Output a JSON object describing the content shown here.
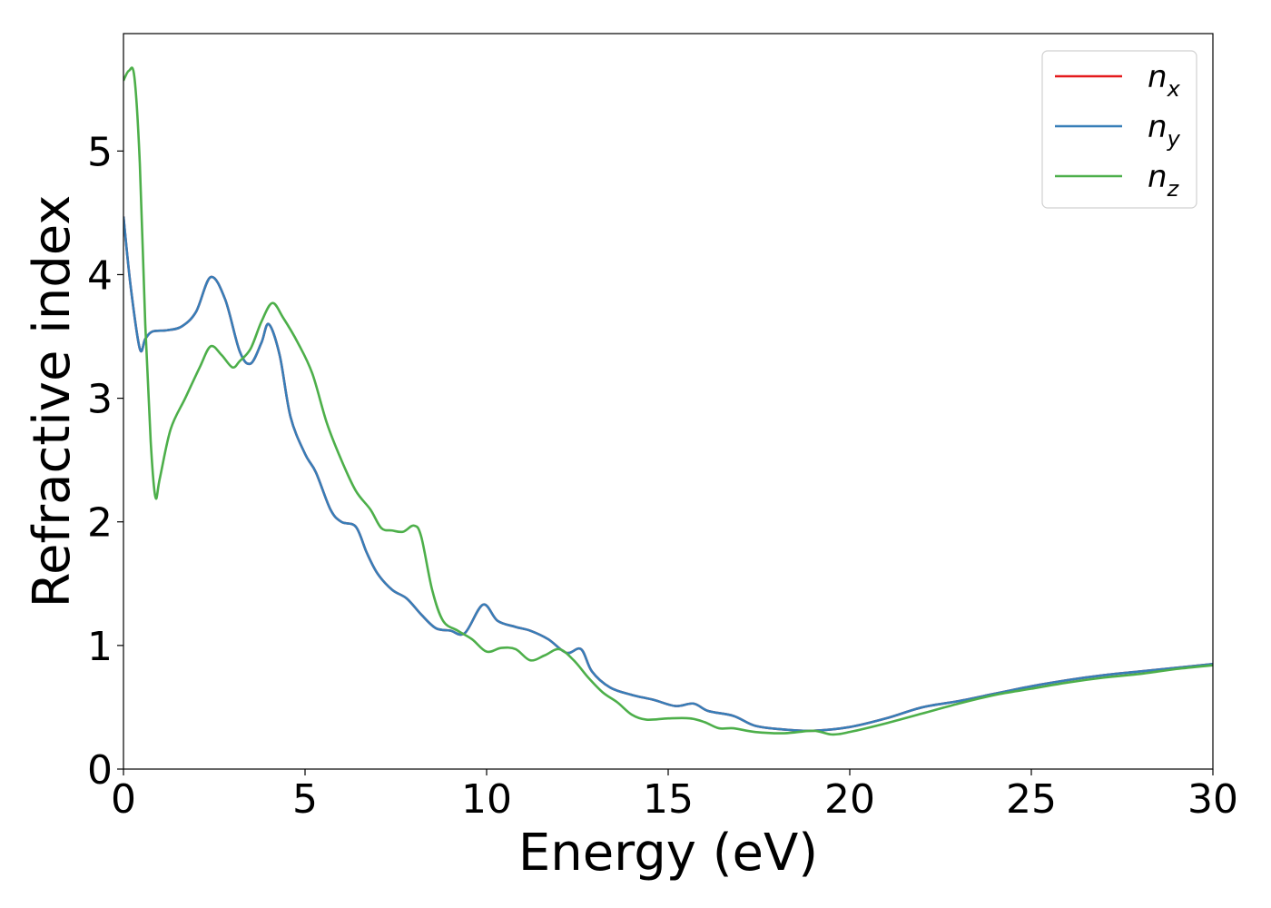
{
  "chart_data": {
    "type": "line",
    "title": "",
    "xlabel": "Energy (eV)",
    "ylabel": "Refractive index",
    "xlim": [
      0,
      30
    ],
    "ylim": [
      0,
      5.95
    ],
    "xticks": [
      "0",
      "5",
      "10",
      "15",
      "20",
      "25",
      "30"
    ],
    "yticks": [
      "0",
      "1",
      "2",
      "3",
      "4",
      "5"
    ],
    "grid": false,
    "legend_position": "top-right",
    "series": [
      {
        "name": "n",
        "subscript": "x",
        "color": "#e41a1c",
        "x": [
          0,
          0.2,
          0.45,
          0.6,
          0.8,
          1.2,
          1.6,
          2.0,
          2.4,
          2.8,
          3.2,
          3.5,
          3.8,
          4.0,
          4.3,
          4.6,
          5.0,
          5.3,
          5.7,
          6.0,
          6.4,
          6.7,
          7.0,
          7.4,
          7.8,
          8.2,
          8.6,
          9.0,
          9.4,
          9.9,
          10.3,
          10.8,
          11.2,
          11.7,
          12.2,
          12.6,
          12.9,
          13.4,
          14.0,
          14.6,
          15.2,
          15.7,
          16.1,
          16.8,
          17.4,
          18.2,
          19.0,
          20.0,
          21.0,
          22.0,
          23.0,
          24.0,
          25.0,
          26.0,
          27.0,
          28.0,
          29.0,
          30.0
        ],
        "y": [
          4.47,
          3.9,
          3.4,
          3.48,
          3.54,
          3.55,
          3.58,
          3.7,
          3.98,
          3.8,
          3.38,
          3.28,
          3.45,
          3.6,
          3.35,
          2.85,
          2.55,
          2.4,
          2.1,
          2.0,
          1.96,
          1.75,
          1.58,
          1.45,
          1.38,
          1.25,
          1.14,
          1.12,
          1.1,
          1.33,
          1.2,
          1.15,
          1.12,
          1.05,
          0.94,
          0.97,
          0.79,
          0.66,
          0.6,
          0.56,
          0.51,
          0.53,
          0.47,
          0.43,
          0.35,
          0.32,
          0.31,
          0.34,
          0.41,
          0.5,
          0.55,
          0.61,
          0.67,
          0.72,
          0.76,
          0.79,
          0.82,
          0.85
        ]
      },
      {
        "name": "n",
        "subscript": "y",
        "color": "#377eb8",
        "x": [
          0,
          0.2,
          0.45,
          0.6,
          0.8,
          1.2,
          1.6,
          2.0,
          2.4,
          2.8,
          3.2,
          3.5,
          3.8,
          4.0,
          4.3,
          4.6,
          5.0,
          5.3,
          5.7,
          6.0,
          6.4,
          6.7,
          7.0,
          7.4,
          7.8,
          8.2,
          8.6,
          9.0,
          9.4,
          9.9,
          10.3,
          10.8,
          11.2,
          11.7,
          12.2,
          12.6,
          12.9,
          13.4,
          14.0,
          14.6,
          15.2,
          15.7,
          16.1,
          16.8,
          17.4,
          18.2,
          19.0,
          20.0,
          21.0,
          22.0,
          23.0,
          24.0,
          25.0,
          26.0,
          27.0,
          28.0,
          29.0,
          30.0
        ],
        "y": [
          4.47,
          3.9,
          3.4,
          3.48,
          3.54,
          3.55,
          3.58,
          3.7,
          3.98,
          3.8,
          3.38,
          3.28,
          3.45,
          3.6,
          3.35,
          2.85,
          2.55,
          2.4,
          2.1,
          2.0,
          1.96,
          1.75,
          1.58,
          1.45,
          1.38,
          1.25,
          1.14,
          1.12,
          1.1,
          1.33,
          1.2,
          1.15,
          1.12,
          1.05,
          0.94,
          0.97,
          0.79,
          0.66,
          0.6,
          0.56,
          0.51,
          0.53,
          0.47,
          0.43,
          0.35,
          0.32,
          0.31,
          0.34,
          0.41,
          0.5,
          0.55,
          0.61,
          0.67,
          0.72,
          0.76,
          0.79,
          0.82,
          0.85
        ]
      },
      {
        "name": "n",
        "subscript": "z",
        "color": "#4daf4a",
        "x": [
          0,
          0.15,
          0.3,
          0.45,
          0.6,
          0.75,
          0.88,
          1.0,
          1.3,
          1.7,
          2.1,
          2.4,
          2.7,
          3.0,
          3.2,
          3.5,
          3.8,
          4.1,
          4.4,
          4.8,
          5.2,
          5.6,
          6.0,
          6.4,
          6.8,
          7.1,
          7.4,
          7.7,
          8.0,
          8.2,
          8.5,
          8.8,
          9.2,
          9.6,
          10.0,
          10.4,
          10.8,
          11.2,
          11.6,
          12.0,
          12.4,
          12.8,
          13.2,
          13.6,
          14.0,
          14.4,
          15.0,
          15.6,
          16.0,
          16.4,
          16.8,
          17.4,
          18.2,
          19.0,
          19.5,
          20.0,
          21.0,
          22.0,
          23.0,
          24.0,
          25.0,
          26.0,
          27.0,
          28.0,
          29.0,
          30.0
        ],
        "y": [
          5.57,
          5.65,
          5.6,
          4.9,
          3.6,
          2.65,
          2.2,
          2.35,
          2.75,
          3.0,
          3.25,
          3.42,
          3.35,
          3.25,
          3.3,
          3.4,
          3.62,
          3.77,
          3.65,
          3.45,
          3.2,
          2.8,
          2.5,
          2.25,
          2.1,
          1.95,
          1.93,
          1.92,
          1.97,
          1.88,
          1.45,
          1.2,
          1.12,
          1.05,
          0.95,
          0.98,
          0.97,
          0.88,
          0.92,
          0.97,
          0.88,
          0.74,
          0.62,
          0.54,
          0.44,
          0.4,
          0.41,
          0.41,
          0.38,
          0.33,
          0.33,
          0.3,
          0.29,
          0.31,
          0.28,
          0.3,
          0.37,
          0.45,
          0.53,
          0.6,
          0.65,
          0.7,
          0.74,
          0.77,
          0.81,
          0.84
        ]
      }
    ]
  }
}
